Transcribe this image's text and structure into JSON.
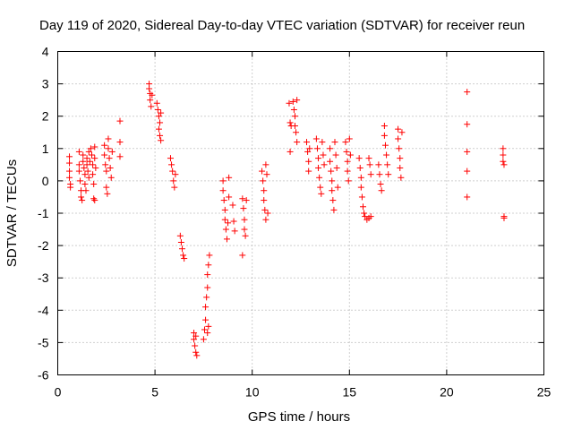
{
  "chart_data": {
    "type": "scatter",
    "title": "Day 119 of 2020, Sidereal Day-to-day VTEC variation (SDTVAR) for receiver reun",
    "xlabel": "GPS time / hours",
    "ylabel": "SDTVAR / TECUs",
    "xlim": [
      0,
      25
    ],
    "ylim": [
      -6,
      4
    ],
    "xticks": [
      0,
      5,
      10,
      15,
      20,
      25
    ],
    "yticks": [
      -6,
      -5,
      -4,
      -3,
      -2,
      -1,
      0,
      1,
      2,
      3,
      4
    ],
    "grid": true,
    "marker": "+",
    "color": "#ff0000",
    "series": [
      {
        "name": "SDTVAR",
        "points": [
          [
            0.6,
            0.75
          ],
          [
            0.6,
            0.55
          ],
          [
            0.6,
            0.3
          ],
          [
            0.6,
            0.1
          ],
          [
            0.65,
            -0.1
          ],
          [
            0.65,
            -0.2
          ],
          [
            1.1,
            0.9
          ],
          [
            1.1,
            0.5
          ],
          [
            1.1,
            0.3
          ],
          [
            1.15,
            0.0
          ],
          [
            1.2,
            -0.3
          ],
          [
            1.2,
            -0.5
          ],
          [
            1.25,
            -0.6
          ],
          [
            1.3,
            0.8
          ],
          [
            1.3,
            0.6
          ],
          [
            1.35,
            0.4
          ],
          [
            1.4,
            0.2
          ],
          [
            1.4,
            -0.1
          ],
          [
            1.45,
            -0.3
          ],
          [
            1.5,
            0.7
          ],
          [
            1.5,
            0.5
          ],
          [
            1.55,
            0.3
          ],
          [
            1.6,
            0.1
          ],
          [
            1.6,
            0.9
          ],
          [
            1.65,
            0.6
          ],
          [
            1.7,
            1.0
          ],
          [
            1.75,
            0.8
          ],
          [
            1.8,
            0.5
          ],
          [
            1.8,
            0.2
          ],
          [
            1.85,
            -0.1
          ],
          [
            1.9,
            1.05
          ],
          [
            1.9,
            0.7
          ],
          [
            1.95,
            0.4
          ],
          [
            1.85,
            -0.55
          ],
          [
            1.9,
            -0.6
          ],
          [
            2.4,
            1.1
          ],
          [
            2.4,
            0.8
          ],
          [
            2.45,
            0.5
          ],
          [
            2.5,
            0.3
          ],
          [
            2.5,
            -0.2
          ],
          [
            2.55,
            -0.4
          ],
          [
            2.6,
            1.3
          ],
          [
            2.6,
            1.0
          ],
          [
            2.65,
            0.7
          ],
          [
            2.7,
            0.4
          ],
          [
            2.75,
            0.1
          ],
          [
            2.8,
            0.9
          ],
          [
            3.2,
            1.85
          ],
          [
            3.2,
            1.2
          ],
          [
            3.2,
            0.75
          ],
          [
            4.7,
            3.0
          ],
          [
            4.7,
            2.85
          ],
          [
            4.75,
            2.7
          ],
          [
            4.75,
            2.5
          ],
          [
            4.8,
            2.3
          ],
          [
            4.85,
            2.65
          ],
          [
            5.1,
            2.4
          ],
          [
            5.15,
            2.2
          ],
          [
            5.2,
            2.0
          ],
          [
            5.25,
            1.8
          ],
          [
            5.2,
            1.6
          ],
          [
            5.25,
            1.4
          ],
          [
            5.3,
            1.25
          ],
          [
            5.3,
            2.1
          ],
          [
            5.8,
            0.7
          ],
          [
            5.85,
            0.5
          ],
          [
            5.9,
            0.3
          ],
          [
            5.95,
            0.0
          ],
          [
            6.0,
            -0.2
          ],
          [
            6.05,
            0.2
          ],
          [
            6.3,
            -1.7
          ],
          [
            6.35,
            -1.9
          ],
          [
            6.4,
            -2.1
          ],
          [
            6.45,
            -2.3
          ],
          [
            6.5,
            -2.4
          ],
          [
            7.0,
            -4.7
          ],
          [
            7.0,
            -4.9
          ],
          [
            7.05,
            -5.1
          ],
          [
            7.1,
            -5.3
          ],
          [
            7.15,
            -5.4
          ],
          [
            7.1,
            -4.8
          ],
          [
            7.5,
            -4.9
          ],
          [
            7.55,
            -4.6
          ],
          [
            7.6,
            -4.3
          ],
          [
            7.6,
            -3.9
          ],
          [
            7.65,
            -3.6
          ],
          [
            7.7,
            -3.3
          ],
          [
            7.7,
            -2.9
          ],
          [
            7.75,
            -2.6
          ],
          [
            7.8,
            -2.3
          ],
          [
            7.75,
            -4.5
          ],
          [
            7.7,
            -4.7
          ],
          [
            8.5,
            0.0
          ],
          [
            8.5,
            -0.3
          ],
          [
            8.55,
            -0.6
          ],
          [
            8.6,
            -0.9
          ],
          [
            8.6,
            -1.2
          ],
          [
            8.65,
            -1.5
          ],
          [
            8.7,
            -1.8
          ],
          [
            8.75,
            -1.3
          ],
          [
            8.8,
            -0.5
          ],
          [
            8.8,
            0.1
          ],
          [
            9.0,
            -0.75
          ],
          [
            9.05,
            -1.25
          ],
          [
            9.1,
            -1.55
          ],
          [
            9.5,
            -0.55
          ],
          [
            9.55,
            -0.85
          ],
          [
            9.6,
            -1.2
          ],
          [
            9.6,
            -1.5
          ],
          [
            9.65,
            -1.7
          ],
          [
            9.7,
            -0.6
          ],
          [
            9.5,
            -2.3
          ],
          [
            10.5,
            0.3
          ],
          [
            10.55,
            0.0
          ],
          [
            10.6,
            -0.3
          ],
          [
            10.6,
            -0.6
          ],
          [
            10.65,
            -0.9
          ],
          [
            10.7,
            -1.2
          ],
          [
            10.7,
            0.5
          ],
          [
            10.75,
            0.2
          ],
          [
            10.8,
            -1.0
          ],
          [
            11.9,
            2.4
          ],
          [
            11.95,
            1.8
          ],
          [
            11.95,
            0.9
          ],
          [
            12.0,
            1.7
          ],
          [
            12.1,
            2.45
          ],
          [
            12.15,
            2.2
          ],
          [
            12.2,
            2.0
          ],
          [
            12.2,
            1.7
          ],
          [
            12.25,
            1.5
          ],
          [
            12.3,
            1.2
          ],
          [
            12.3,
            2.5
          ],
          [
            12.8,
            1.2
          ],
          [
            12.85,
            0.9
          ],
          [
            12.9,
            0.6
          ],
          [
            12.9,
            0.3
          ],
          [
            12.95,
            1.0
          ],
          [
            13.3,
            1.3
          ],
          [
            13.35,
            1.0
          ],
          [
            13.4,
            0.7
          ],
          [
            13.4,
            0.4
          ],
          [
            13.45,
            0.1
          ],
          [
            13.5,
            -0.2
          ],
          [
            13.55,
            -0.4
          ],
          [
            13.6,
            1.2
          ],
          [
            13.65,
            0.8
          ],
          [
            13.7,
            0.5
          ],
          [
            14.0,
            1.0
          ],
          [
            14.0,
            0.6
          ],
          [
            14.05,
            0.3
          ],
          [
            14.1,
            0.0
          ],
          [
            14.1,
            -0.3
          ],
          [
            14.15,
            -0.6
          ],
          [
            14.2,
            -0.9
          ],
          [
            14.25,
            1.2
          ],
          [
            14.3,
            0.8
          ],
          [
            14.35,
            0.4
          ],
          [
            14.4,
            -0.2
          ],
          [
            14.8,
            1.2
          ],
          [
            14.85,
            0.9
          ],
          [
            14.9,
            0.6
          ],
          [
            14.9,
            0.3
          ],
          [
            14.95,
            0.0
          ],
          [
            15.0,
            1.3
          ],
          [
            15.05,
            0.8
          ],
          [
            15.5,
            0.7
          ],
          [
            15.55,
            0.4
          ],
          [
            15.6,
            0.1
          ],
          [
            15.6,
            -0.2
          ],
          [
            15.65,
            -0.5
          ],
          [
            15.7,
            -0.8
          ],
          [
            15.75,
            -1.0
          ],
          [
            15.8,
            -1.1
          ],
          [
            15.9,
            -1.2
          ],
          [
            16.0,
            -1.15
          ],
          [
            16.1,
            -1.1
          ],
          [
            16.0,
            0.7
          ],
          [
            16.05,
            0.5
          ],
          [
            16.1,
            0.2
          ],
          [
            16.5,
            0.5
          ],
          [
            16.55,
            0.2
          ],
          [
            16.6,
            -0.1
          ],
          [
            16.65,
            -0.3
          ],
          [
            16.8,
            1.7
          ],
          [
            16.8,
            1.4
          ],
          [
            16.85,
            1.1
          ],
          [
            16.9,
            0.8
          ],
          [
            16.95,
            0.5
          ],
          [
            17.0,
            0.2
          ],
          [
            17.5,
            1.6
          ],
          [
            17.5,
            1.3
          ],
          [
            17.55,
            1.0
          ],
          [
            17.6,
            0.7
          ],
          [
            17.6,
            0.4
          ],
          [
            17.65,
            0.1
          ],
          [
            17.7,
            1.5
          ],
          [
            21.05,
            2.75
          ],
          [
            21.05,
            1.75
          ],
          [
            21.05,
            0.9
          ],
          [
            21.05,
            0.3
          ],
          [
            21.05,
            -0.5
          ],
          [
            22.9,
            1.0
          ],
          [
            22.9,
            0.8
          ],
          [
            22.9,
            0.6
          ],
          [
            22.95,
            0.5
          ],
          [
            22.95,
            -1.1
          ],
          [
            22.95,
            -1.15
          ]
        ]
      }
    ]
  }
}
